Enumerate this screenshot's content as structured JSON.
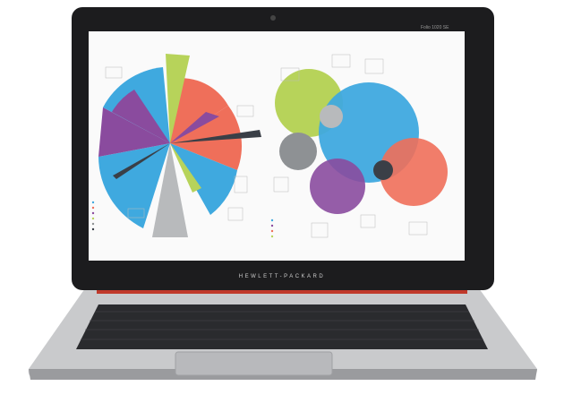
{
  "laptop": {
    "brand": "HEWLETT-PACKARD",
    "model": "Folio 1020 SE"
  },
  "screen": {
    "colors": {
      "blue": "#3fa9df",
      "salmon": "#ef6f5a",
      "purple": "#8a4b9e",
      "green": "#b7d35a",
      "gray": "#8e9194",
      "dark": "#3a3f47"
    }
  }
}
